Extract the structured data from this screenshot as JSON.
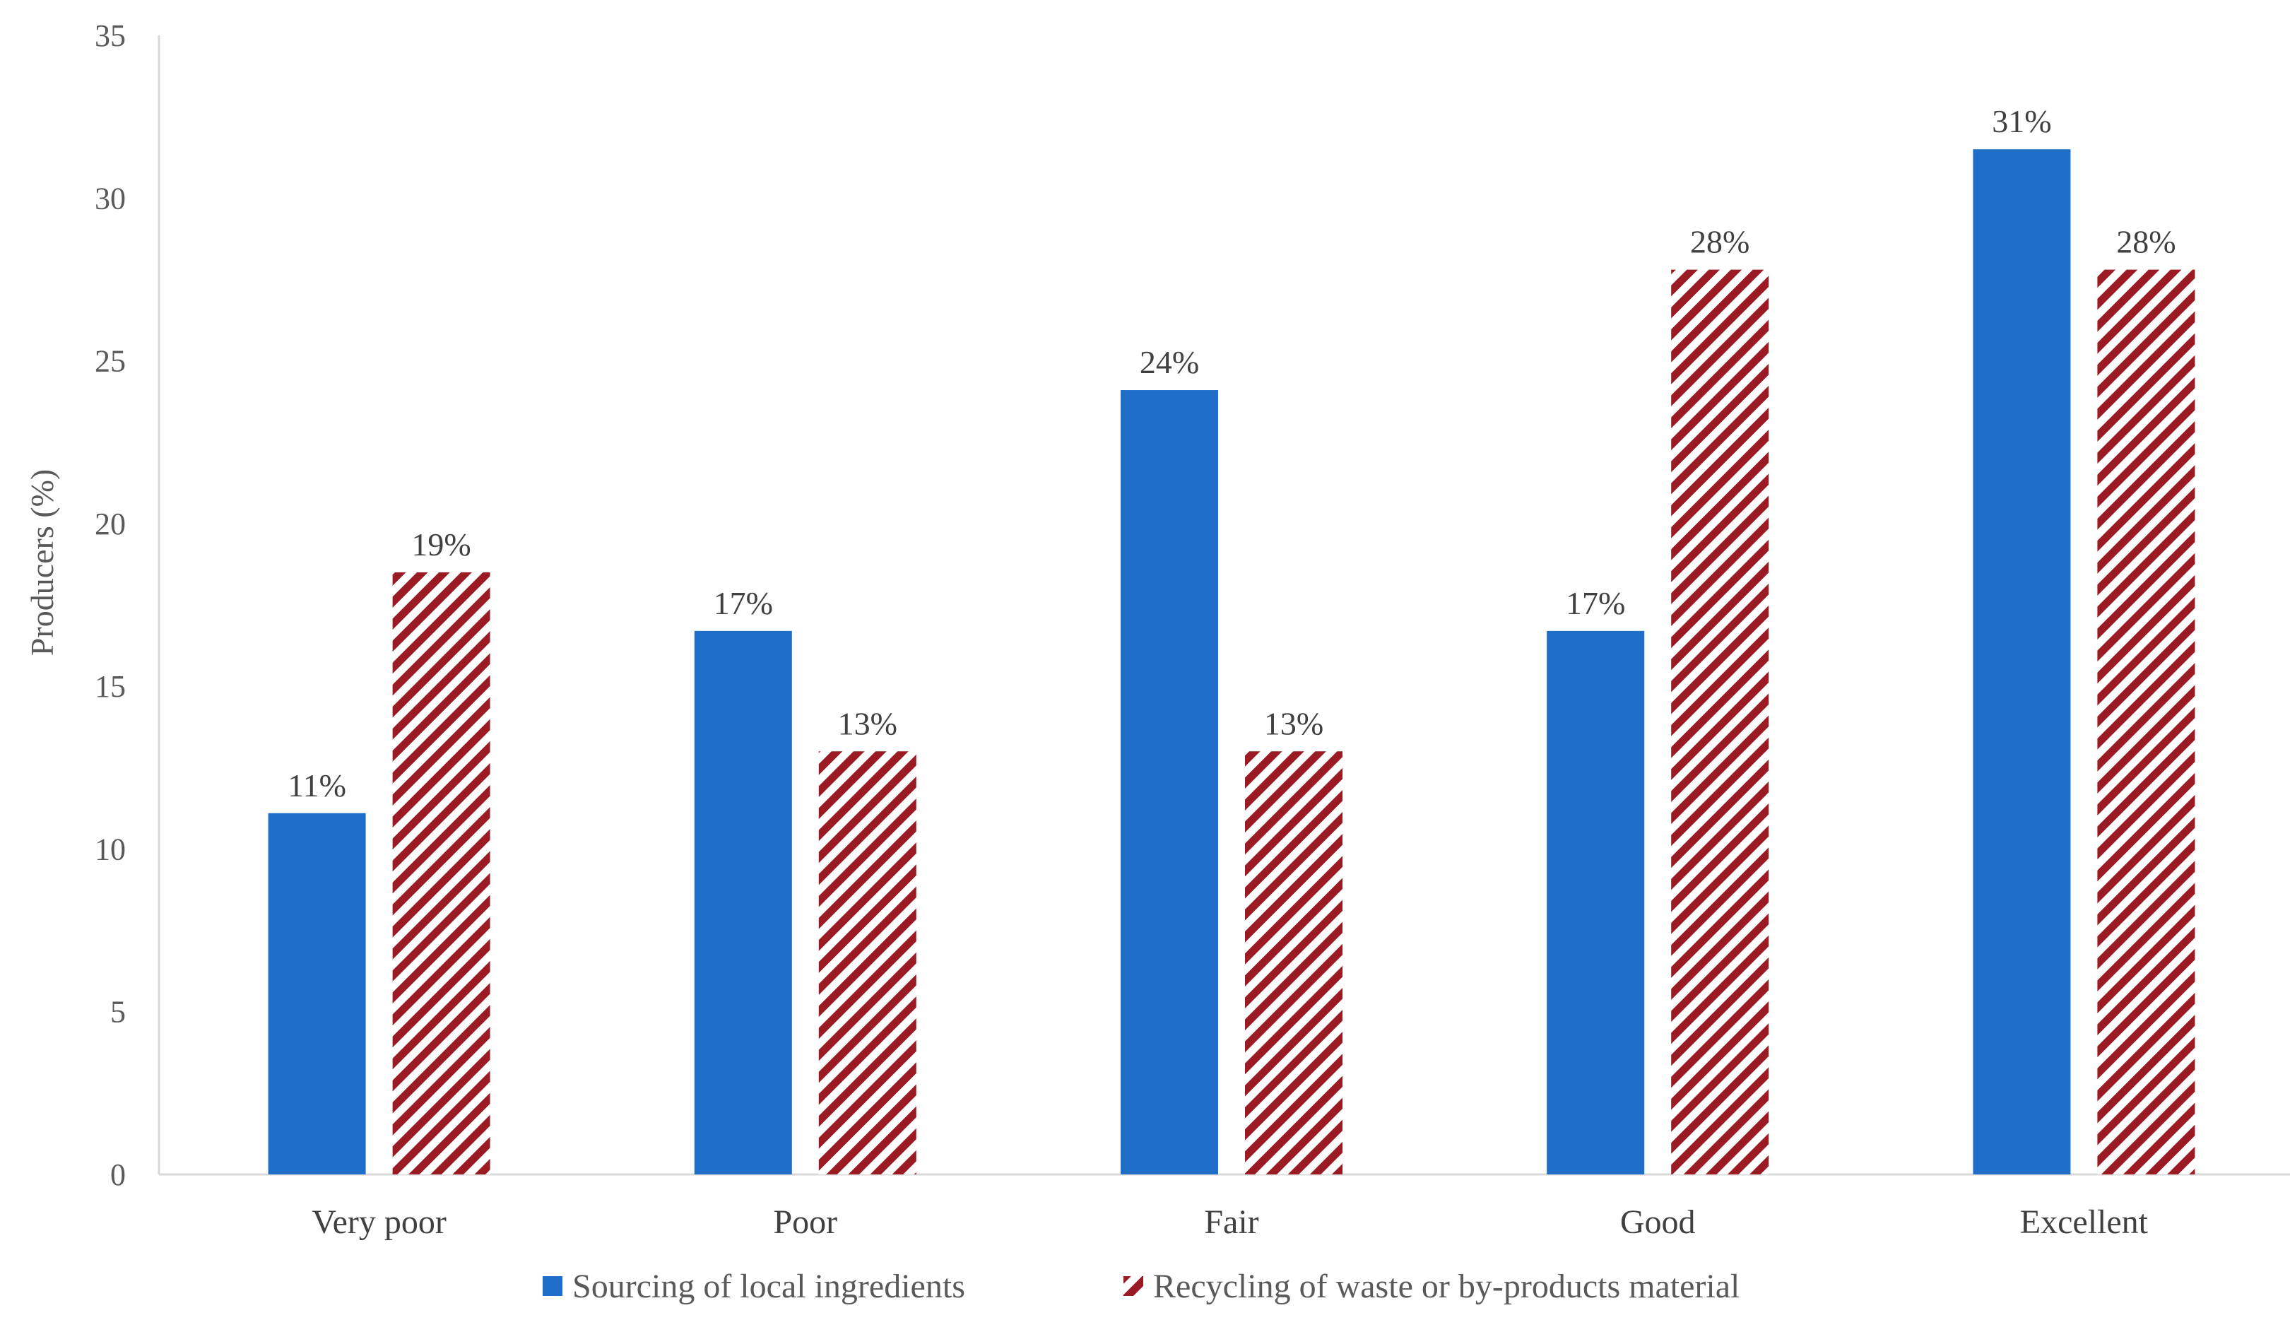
{
  "chart_data": {
    "type": "bar",
    "title": "",
    "xlabel": "",
    "ylabel": "Producers (%)",
    "ylim": [
      0,
      35
    ],
    "yticks": [
      0,
      5,
      10,
      15,
      20,
      25,
      30,
      35
    ],
    "grid": false,
    "legend_position": "bottom",
    "categories": [
      "Very poor",
      "Poor",
      "Fair",
      "Good",
      "Excellent"
    ],
    "series": [
      {
        "name": "Sourcing of local ingredients",
        "values": [
          11.1,
          16.7,
          24.1,
          16.7,
          31.5
        ],
        "labels": [
          "11%",
          "17%",
          "24%",
          "17%",
          "31%"
        ],
        "color": "#1f6fc9",
        "pattern": "solid"
      },
      {
        "name": "Recycling of waste or by-products material",
        "values": [
          18.5,
          13.0,
          13.0,
          27.8,
          27.8
        ],
        "labels": [
          "19%",
          "13%",
          "13%",
          "28%",
          "28%"
        ],
        "color": "#9b1b24",
        "pattern": "diagonal-stripes"
      }
    ]
  },
  "colors": {
    "axis_line": "#d9d9d9",
    "background": "#ffffff"
  }
}
